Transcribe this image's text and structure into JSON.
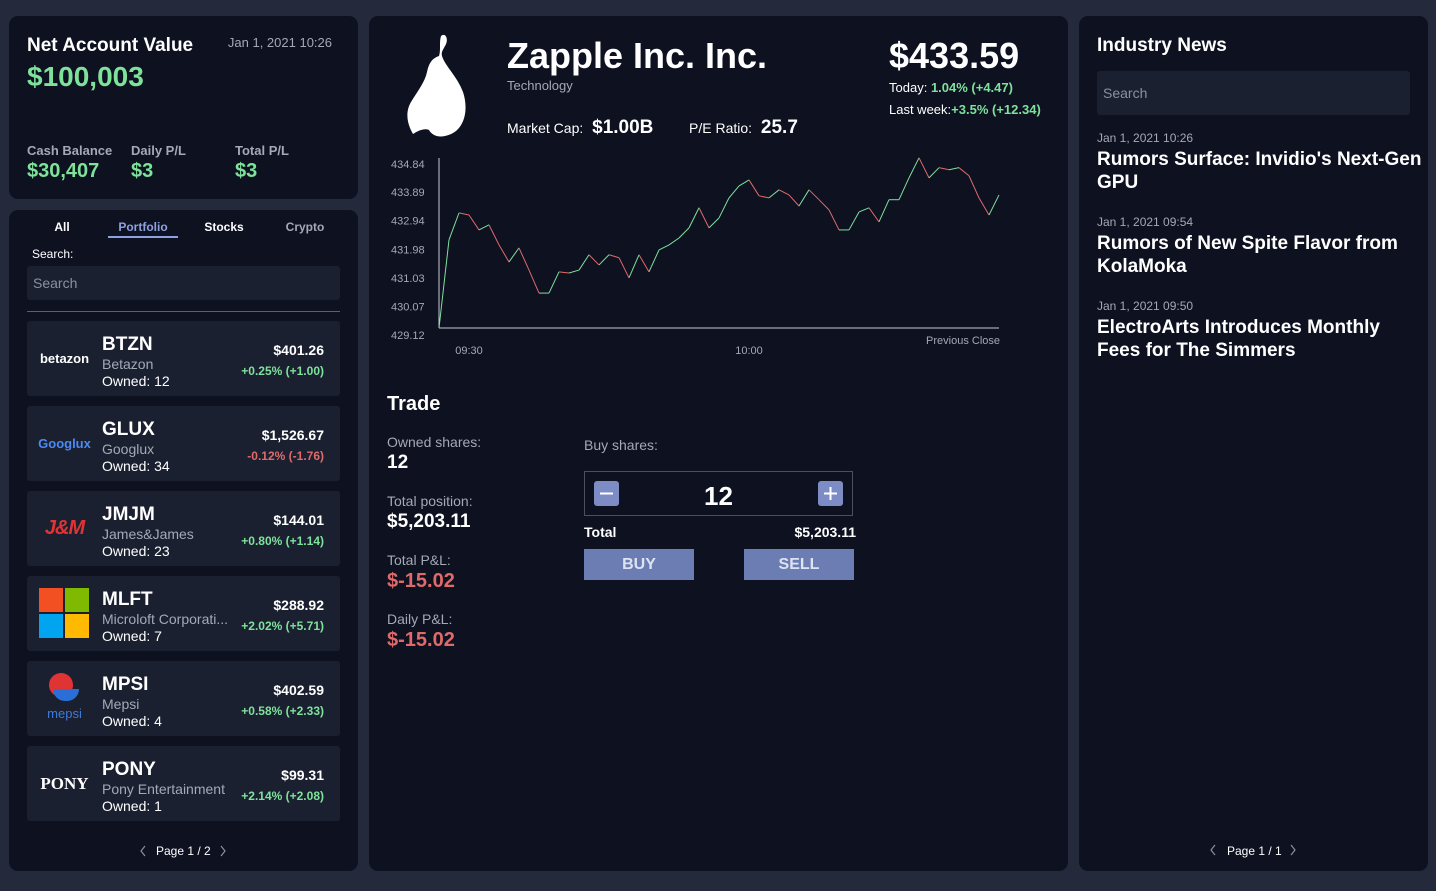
{
  "account": {
    "title": "Net Account Value",
    "date": "Jan 1, 2021 10:26",
    "value": "$100,003",
    "cash_label": "Cash Balance",
    "cash": "$30,407",
    "daily_label": "Daily P/L",
    "daily": "$3",
    "total_label": "Total P/L",
    "total": "$3"
  },
  "portfolio": {
    "tabs": [
      "All",
      "Portfolio",
      "Stocks",
      "Crypto"
    ],
    "active_tab": 1,
    "search_label": "Search:",
    "search_placeholder": "Search",
    "pager": "Page 1 / 2",
    "stocks": [
      {
        "logo": "betazon",
        "symbol": "BTZN",
        "name": "Betazon",
        "owned": "Owned: 12",
        "price": "$401.26",
        "change": "+0.25% (+1.00)"
      },
      {
        "logo": "Googlux",
        "symbol": "GLUX",
        "name": "Googlux",
        "owned": "Owned: 34",
        "price": "$1,526.67",
        "change": "-0.12% (-1.76)"
      },
      {
        "logo": "J&M",
        "symbol": "JMJM",
        "name": "James&James",
        "owned": "Owned: 23",
        "price": "$144.01",
        "change": "+0.80% (+1.14)"
      },
      {
        "symbol": "MLFT",
        "name": "Microloft Corporati...",
        "owned": "Owned: 7",
        "price": "$288.92",
        "change": "+2.02% (+5.71)"
      },
      {
        "logo": "mepsi",
        "symbol": "MPSI",
        "name": "Mepsi",
        "owned": "Owned: 4",
        "price": "$402.59",
        "change": "+0.58% (+2.33)"
      },
      {
        "logo": "PONY",
        "symbol": "PONY",
        "name": "Pony Entertainment",
        "owned": "Owned: 1",
        "price": "$99.31",
        "change": "+2.14% (+2.08)"
      }
    ]
  },
  "stock": {
    "name": "Zapple Inc. Inc.",
    "sector": "Technology",
    "price": "$433.59",
    "today_label": "Today:",
    "today": "1.04% (+4.47)",
    "week_label": "Last week:",
    "week": "+3.5% (+12.34)",
    "cap_label": "Market Cap:",
    "cap": "$1.00B",
    "pe_label": "P/E Ratio:",
    "pe": "25.7"
  },
  "chart_data": {
    "type": "line",
    "up_color": "#7ee29b",
    "down_color": "#e06a6a",
    "annotation": "Previous Close",
    "categories": [
      null,
      null,
      null,
      "09:30",
      null,
      null,
      null,
      null,
      null,
      null,
      null,
      null,
      null,
      null,
      null,
      null,
      null,
      null,
      null,
      null,
      null,
      null,
      null,
      null,
      null,
      null,
      null,
      null,
      null,
      null,
      null,
      "10:00",
      null,
      null,
      null,
      null,
      null,
      null,
      null,
      null,
      null,
      null,
      null,
      null,
      null,
      null,
      null,
      null,
      null,
      null,
      null,
      null,
      null,
      null,
      null,
      null,
      null
    ],
    "values": [
      429.35,
      432.3,
      433.2,
      433.13,
      432.63,
      432.8,
      432.13,
      431.56,
      432.03,
      431.29,
      430.52,
      430.52,
      431.23,
      431.19,
      431.29,
      431.8,
      431.46,
      431.8,
      431.7,
      431.03,
      431.8,
      431.23,
      431.96,
      432.13,
      432.36,
      432.7,
      433.37,
      432.7,
      433.03,
      433.7,
      434.1,
      434.3,
      433.77,
      433.7,
      433.97,
      433.8,
      433.43,
      433.97,
      433.64,
      433.3,
      432.63,
      432.63,
      433.23,
      433.37,
      432.9,
      433.64,
      433.64,
      434.37,
      435.04,
      434.37,
      434.71,
      434.64,
      434.71,
      434.44,
      433.7,
      433.13,
      433.8
    ],
    "ylim": [
      429.12,
      435.1
    ],
    "yticks": [
      434.84,
      433.89,
      432.94,
      431.98,
      431.03,
      430.07,
      429.12
    ]
  },
  "trade": {
    "title": "Trade",
    "owned_label": "Owned shares:",
    "owned": "12",
    "position_label": "Total position:",
    "position": "$5,203.11",
    "total_pl_label": "Total P&L:",
    "total_pl": "$-15.02",
    "daily_pl_label": "Daily P&L:",
    "daily_pl": "$-15.02",
    "buy_label": "Buy shares:",
    "quantity": "12",
    "total_label": "Total",
    "total": "$5,203.11",
    "buy": "BUY",
    "sell": "SELL"
  },
  "news": {
    "title": "Industry News",
    "search_placeholder": "Search",
    "pager": "Page 1 / 1",
    "items": [
      {
        "date": "Jan 1, 2021 10:26",
        "headline": "Rumors Surface: Invidio's Next-Gen GPU"
      },
      {
        "date": "Jan 1, 2021 09:54",
        "headline": "Rumors of New Spite Flavor from KolaMoka"
      },
      {
        "date": "Jan 1, 2021 09:50",
        "headline": "ElectroArts Introduces Monthly Fees for The Simmers"
      }
    ]
  }
}
